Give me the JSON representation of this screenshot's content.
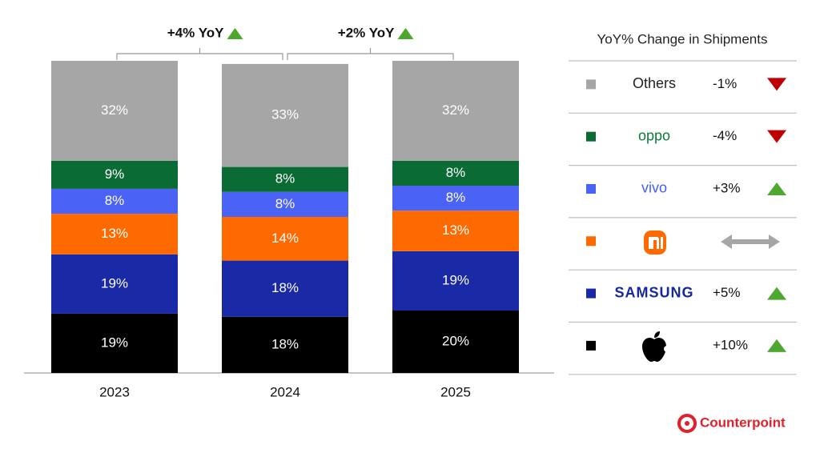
{
  "chart_data": {
    "type": "bar",
    "stacked": true,
    "categories": [
      "2023",
      "2024",
      "2025"
    ],
    "ylim": [
      0,
      100
    ],
    "series": [
      {
        "color": "#000000",
        "values": [
          19,
          18,
          20
        ],
        "value_labels": [
          "19%",
          "18%",
          "20%"
        ],
        "yoy": 10,
        "yoy_label": "+10%"
      },
      {
        "name": "SAMSUNG",
        "name_color": "#1428a0",
        "color": "#1a2aa6",
        "values": [
          19,
          18,
          19
        ],
        "value_labels": [
          "19%",
          "18%",
          "19%"
        ],
        "yoy": 5,
        "yoy_label": "+5%"
      },
      {
        "color": "#ff6a00",
        "values": [
          13,
          14,
          13
        ],
        "value_labels": [
          "13%",
          "14%",
          "13%"
        ],
        "yoy": null
      },
      {
        "name": "vivo",
        "name_color": "#415fff",
        "color": "#4a63f5",
        "values": [
          8,
          8,
          8
        ],
        "value_labels": [
          "8%",
          "8%",
          "8%"
        ],
        "yoy": 3,
        "yoy_label": "+3%"
      },
      {
        "name": "oppo",
        "name_color": "#0a7a3a",
        "color": "#0b6b35",
        "values": [
          9,
          8,
          8
        ],
        "value_labels": [
          "9%",
          "8%",
          "8%"
        ],
        "yoy": -4,
        "yoy_label": "-4%"
      },
      {
        "name": "Others",
        "name_color": "#222222",
        "color": "#a6a6a6",
        "values": [
          32,
          33,
          32
        ],
        "value_labels": [
          "32%",
          "33%",
          "32%"
        ],
        "yoy": -1,
        "yoy_label": "-1%"
      }
    ],
    "annotations": [
      {
        "label": "+4% YoY",
        "value": 4
      },
      {
        "label": "+2% YoY",
        "value": 2
      }
    ],
    "legend_title": "YoY% Change in Shipments",
    "brand": "Counterpoint"
  }
}
